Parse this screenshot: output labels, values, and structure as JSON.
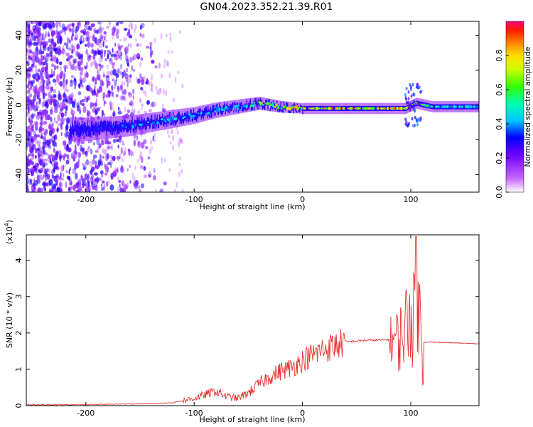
{
  "page": {
    "title": "GN04.2023.352.21.39.R01"
  },
  "colors": {
    "snr_line": "#e8312f",
    "spectrogram_low": "#7a00ff",
    "spectrogram_mid": "#00d7ff",
    "spectrogram_high": "#ff2a00"
  },
  "chart_data": [
    {
      "type": "heatmap",
      "title": "GN04.2023.352.21.39.R01",
      "xlabel": "Height of straight line (km)",
      "ylabel": "Frequency (Hz)",
      "xlim": [
        -255,
        163
      ],
      "ylim": [
        -50,
        48
      ],
      "xticks": [
        -200,
        -100,
        0,
        100
      ],
      "yticks": [
        -40,
        -20,
        0,
        20,
        40
      ],
      "colorbar": {
        "label": "Normalized spectral amplitude",
        "range": [
          0,
          1
        ],
        "ticks": [
          0.0,
          0.2,
          0.4,
          0.6,
          0.8
        ],
        "tick_labels": [
          "0.0",
          "0.2",
          "0.4",
          "0.6",
          "0.8"
        ]
      },
      "ridge": [
        {
          "x": -200,
          "y": -14,
          "amp": 0.3
        },
        {
          "x": -180,
          "y": -13,
          "amp": 0.35
        },
        {
          "x": -160,
          "y": -12,
          "amp": 0.4
        },
        {
          "x": -140,
          "y": -10,
          "amp": 0.45
        },
        {
          "x": -120,
          "y": -8,
          "amp": 0.45
        },
        {
          "x": -100,
          "y": -6,
          "amp": 0.45
        },
        {
          "x": -80,
          "y": -3,
          "amp": 0.45
        },
        {
          "x": -60,
          "y": -1,
          "amp": 0.5
        },
        {
          "x": -40,
          "y": 1,
          "amp": 0.65
        },
        {
          "x": -30,
          "y": 0,
          "amp": 0.7
        },
        {
          "x": -20,
          "y": -1,
          "amp": 0.8
        },
        {
          "x": 0,
          "y": -2,
          "amp": 0.85
        },
        {
          "x": 20,
          "y": -2,
          "amp": 0.85
        },
        {
          "x": 40,
          "y": -2,
          "amp": 0.85
        },
        {
          "x": 60,
          "y": -2,
          "amp": 0.85
        },
        {
          "x": 80,
          "y": -2,
          "amp": 0.85
        },
        {
          "x": 95,
          "y": -2,
          "amp": 0.8
        },
        {
          "x": 105,
          "y": 1,
          "amp": 0.8
        },
        {
          "x": 120,
          "y": -1,
          "amp": 0.55
        },
        {
          "x": 140,
          "y": -1,
          "amp": 0.5
        },
        {
          "x": 163,
          "y": -1,
          "amp": 0.5
        }
      ]
    },
    {
      "type": "line",
      "xlabel": "Height of straight line (km)",
      "ylabel": "SNR (10 * v/v)",
      "ylabel_scale": "(x10",
      "ylabel_exp": "4",
      "xlim": [
        -255,
        163
      ],
      "ylim": [
        0,
        4.7
      ],
      "xticks": [
        -200,
        -100,
        0,
        100
      ],
      "yticks": [
        0,
        1,
        2,
        3,
        4
      ],
      "series": [
        {
          "x": [
            -255,
            -200,
            -150,
            -120,
            -100,
            -90,
            -80,
            -70,
            -60,
            -50,
            -40,
            -30,
            -20,
            -10,
            0,
            10,
            20,
            30,
            40,
            50,
            60,
            70,
            80,
            90,
            95,
            100,
            103,
            105,
            107,
            110,
            112,
            130,
            163
          ],
          "y": [
            0.02,
            0.03,
            0.05,
            0.08,
            0.2,
            0.3,
            0.4,
            0.25,
            0.2,
            0.35,
            0.6,
            0.8,
            0.95,
            1.05,
            1.25,
            1.4,
            1.55,
            1.65,
            1.75,
            1.78,
            1.8,
            1.8,
            1.82,
            1.85,
            2.2,
            2.6,
            2.2,
            4.6,
            2.0,
            2.6,
            1.75,
            1.74,
            1.7
          ]
        }
      ]
    }
  ]
}
